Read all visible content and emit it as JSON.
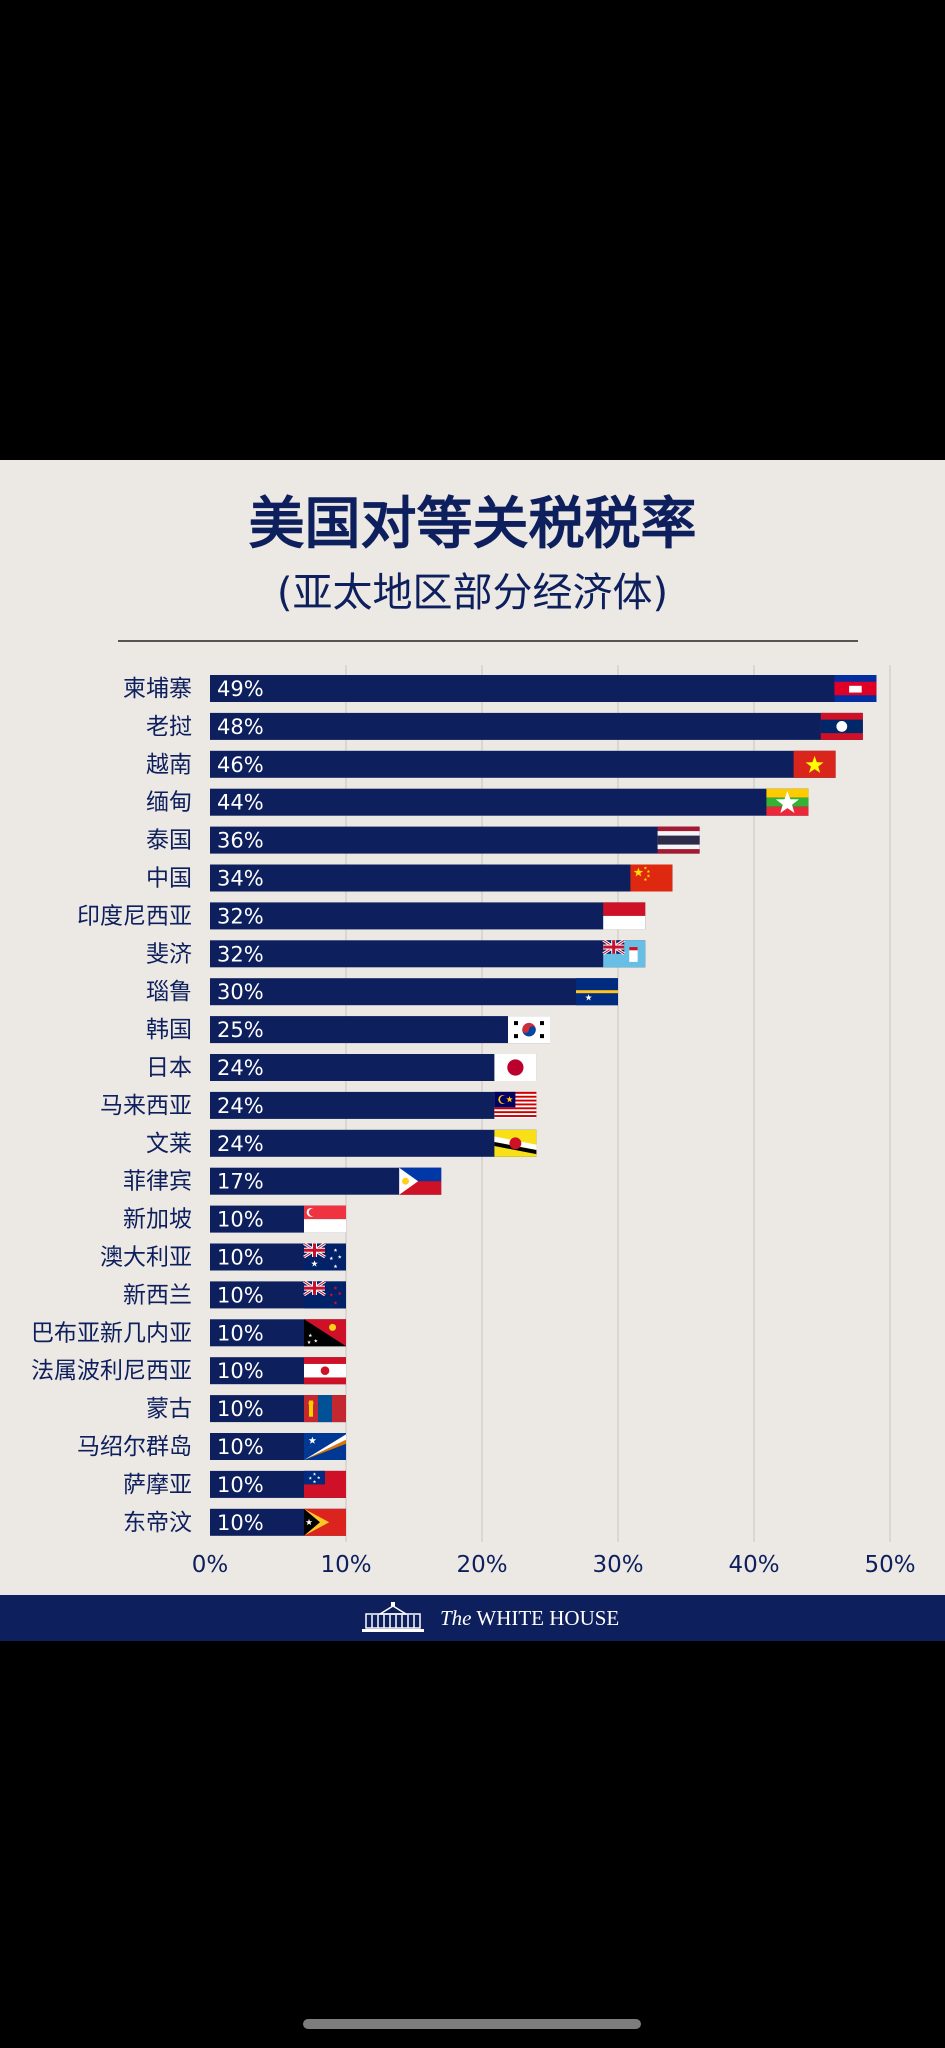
{
  "chart_data": {
    "type": "bar",
    "orientation": "horizontal",
    "title": "美国对等关税税率",
    "subtitle": "(亚太地区部分经济体)",
    "xlabel": "",
    "ylabel": "",
    "xlim": [
      0,
      50
    ],
    "grid": true,
    "categories": [
      "柬埔寨",
      "老挝",
      "越南",
      "缅甸",
      "泰国",
      "中国",
      "印度尼西亚",
      "斐济",
      "瑙鲁",
      "韩国",
      "日本",
      "马来西亚",
      "文莱",
      "菲律宾",
      "新加坡",
      "澳大利亚",
      "新西兰",
      "巴布亚新几内亚",
      "法属波利尼西亚",
      "蒙古",
      "马绍尔群岛",
      "萨摩亚",
      "东帝汶"
    ],
    "values": [
      49,
      48,
      46,
      44,
      36,
      34,
      32,
      32,
      30,
      25,
      24,
      24,
      24,
      17,
      10,
      10,
      10,
      10,
      10,
      10,
      10,
      10,
      10
    ],
    "value_labels": [
      "49%",
      "48%",
      "46%",
      "44%",
      "36%",
      "34%",
      "32%",
      "32%",
      "30%",
      "25%",
      "24%",
      "24%",
      "24%",
      "17%",
      "10%",
      "10%",
      "10%",
      "10%",
      "10%",
      "10%",
      "10%",
      "10%",
      "10%"
    ],
    "x_ticks": [
      0,
      10,
      20,
      30,
      40,
      50
    ],
    "x_tick_labels": [
      "0%",
      "10%",
      "20%",
      "30%",
      "40%",
      "50%"
    ],
    "bar_color": "#0D1F5C",
    "flag_icons": [
      "cambodia-flag-icon",
      "laos-flag-icon",
      "vietnam-flag-icon",
      "myanmar-flag-icon",
      "thailand-flag-icon",
      "china-flag-icon",
      "indonesia-flag-icon",
      "fiji-flag-icon",
      "nauru-flag-icon",
      "south-korea-flag-icon",
      "japan-flag-icon",
      "malaysia-flag-icon",
      "brunei-flag-icon",
      "philippines-flag-icon",
      "singapore-flag-icon",
      "australia-flag-icon",
      "new-zealand-flag-icon",
      "papua-new-guinea-flag-icon",
      "french-polynesia-flag-icon",
      "mongolia-flag-icon",
      "marshall-islands-flag-icon",
      "samoa-flag-icon",
      "timor-leste-flag-icon"
    ]
  },
  "footer": {
    "logo_prefix": "The",
    "logo_name": "WHITE HOUSE",
    "icon": "white-house-building-icon"
  },
  "colors": {
    "navy": "#0D1F5C",
    "background": "#ECE8E4",
    "grid": "#D3D0CC"
  }
}
